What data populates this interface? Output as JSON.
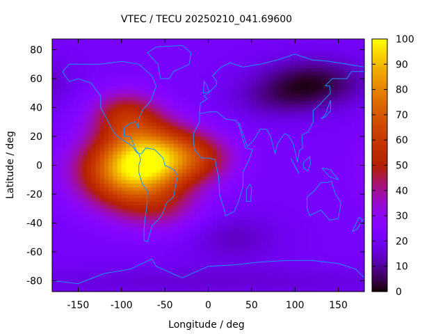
{
  "chart_data": {
    "type": "heatmap",
    "title": "VTEC / TECU 20250210_041.69600",
    "xlabel": "Longitude / deg",
    "ylabel": "Latitude / deg",
    "xlim": [
      -180,
      180
    ],
    "ylim": [
      -87.5,
      87.5
    ],
    "x_ticks": [
      -150,
      -100,
      -50,
      0,
      50,
      100,
      150
    ],
    "x_tick_labels": [
      "-150",
      "-100",
      "-50",
      "0",
      "50",
      "100",
      "150"
    ],
    "y_ticks": [
      -80,
      -60,
      -40,
      -20,
      0,
      20,
      40,
      60,
      80
    ],
    "y_tick_labels": [
      "-80",
      "-60",
      "-40",
      "-20",
      "0",
      "20",
      "40",
      "60",
      "80"
    ],
    "colorbar": {
      "range": [
        0,
        100
      ],
      "ticks": [
        0,
        10,
        20,
        30,
        40,
        50,
        60,
        70,
        80,
        90,
        100
      ],
      "tick_labels": [
        "0",
        "10",
        "20",
        "30",
        "40",
        "50",
        "60",
        "70",
        "80",
        "90",
        "100"
      ],
      "colormap": "gnuplot-pm3d-black-purple-red-yellow"
    },
    "grid": {
      "lon_step": 5,
      "lat_step": 2.5
    },
    "background_vtec": 22,
    "features": [
      {
        "lon": -92,
        "lat": -4,
        "sigma_lon": 40,
        "sigma_lat": 17,
        "vtec": 58
      },
      {
        "lon": -60,
        "lat": 8,
        "sigma_lon": 35,
        "sigma_lat": 15,
        "vtec": 40
      },
      {
        "lon": -95,
        "lat": 35,
        "sigma_lon": 28,
        "sigma_lat": 12,
        "vtec": 28
      },
      {
        "lon": -10,
        "lat": 5,
        "sigma_lon": 30,
        "sigma_lat": 12,
        "vtec": 22
      },
      {
        "lon": -55,
        "lat": -30,
        "sigma_lon": 35,
        "sigma_lat": 12,
        "vtec": 14
      },
      {
        "lon": 120,
        "lat": 58,
        "sigma_lon": 45,
        "sigma_lat": 12,
        "vtec": -18
      },
      {
        "lon": 80,
        "lat": 45,
        "sigma_lon": 40,
        "sigma_lat": 10,
        "vtec": -8
      },
      {
        "lon": 30,
        "lat": -50,
        "sigma_lon": 40,
        "sigma_lat": 12,
        "vtec": -8
      },
      {
        "lon": 0,
        "lat": -80,
        "sigma_lon": 200,
        "sigma_lat": 8,
        "vtec": -6
      }
    ],
    "coastline_color": "#1e90ff"
  }
}
